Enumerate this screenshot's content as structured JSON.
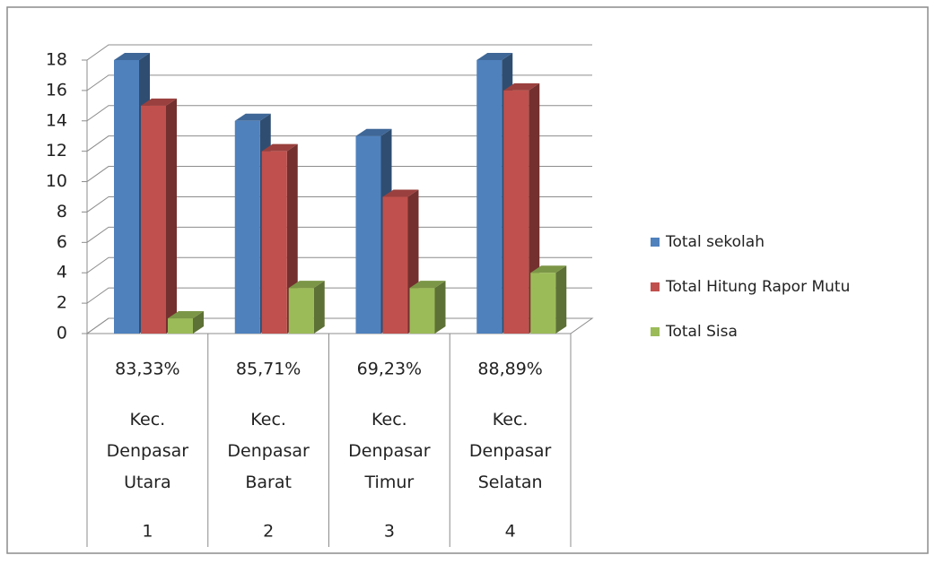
{
  "chart_data": {
    "type": "bar3d",
    "categories": [
      "Kec. Denpasar Utara",
      "Kec. Denpasar Barat",
      "Kec. Denpasar Timur",
      "Kec. Denpasar Selatan"
    ],
    "category_rates": [
      "83,33%",
      "85,71%",
      "69,23%",
      "88,89%"
    ],
    "category_numbers": [
      1,
      2,
      3,
      4
    ],
    "series": [
      {
        "name": "Total sekolah",
        "color": "#4f81bd",
        "values": [
          18,
          14,
          13,
          18
        ]
      },
      {
        "name": "Total Hitung Rapor Mutu",
        "color": "#c0504d",
        "values": [
          15,
          12,
          9,
          16
        ]
      },
      {
        "name": "Total Sisa",
        "color": "#9bbb59",
        "values": [
          1,
          3,
          3,
          4
        ]
      }
    ],
    "ylim": [
      0,
      18
    ],
    "yticks": [
      0,
      2,
      4,
      6,
      8,
      10,
      12,
      14,
      16,
      18
    ],
    "grid": true,
    "legend": "right"
  }
}
